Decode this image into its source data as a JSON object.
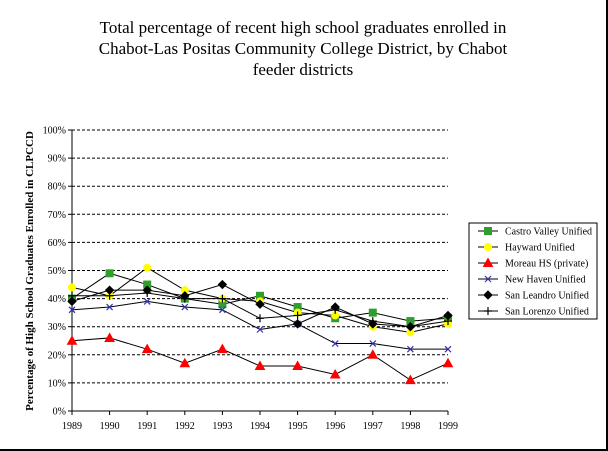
{
  "chart_data": {
    "type": "line",
    "title_lines": [
      "Total percentage of recent high school graduates enrolled in",
      "Chabot-Las Positas Community College District, by Chabot",
      "feeder districts"
    ],
    "xlabel": "",
    "ylabel": "Percentage of High School Graduates Enrolled in CLPCCD",
    "categories": [
      "1989",
      "1990",
      "1991",
      "1992",
      "1993",
      "1994",
      "1995",
      "1996",
      "1997",
      "1998",
      "1999"
    ],
    "ylim": [
      0,
      100
    ],
    "yticks": [
      "0%",
      "10%",
      "20%",
      "30%",
      "40%",
      "50%",
      "60%",
      "70%",
      "80%",
      "90%",
      "100%"
    ],
    "grid": "horizontal dashed",
    "legend_position": "right",
    "series": [
      {
        "name": "Castro Valley Unified",
        "color": "#2e9e2e",
        "marker": "square",
        "values": [
          40,
          49,
          45,
          40,
          38,
          41,
          37,
          33,
          35,
          32,
          33
        ]
      },
      {
        "name": "Hayward Unified",
        "color": "#ffff00",
        "marker": "circle",
        "values": [
          44,
          41,
          51,
          43,
          40,
          39,
          35,
          34,
          30,
          28,
          31
        ]
      },
      {
        "name": "Moreau HS (private)",
        "color": "#ff0000",
        "marker": "triangle",
        "values": [
          25,
          26,
          22,
          17,
          22,
          16,
          16,
          13,
          20,
          11,
          17
        ]
      },
      {
        "name": "New Haven Unified",
        "color": "#3333aa",
        "marker": "x",
        "values": [
          36,
          37,
          39,
          37,
          36,
          29,
          31,
          24,
          24,
          22,
          22
        ]
      },
      {
        "name": "San Leandro Unified",
        "color": "#000000",
        "marker": "diamond",
        "values": [
          39,
          43,
          43,
          41,
          45,
          38,
          31,
          37,
          31,
          30,
          34
        ]
      },
      {
        "name": "San Lorenzo Unified",
        "color": "#000000",
        "marker": "plus",
        "values": [
          41,
          41,
          42,
          40,
          40,
          33,
          34,
          36,
          32,
          30,
          32
        ]
      }
    ]
  }
}
